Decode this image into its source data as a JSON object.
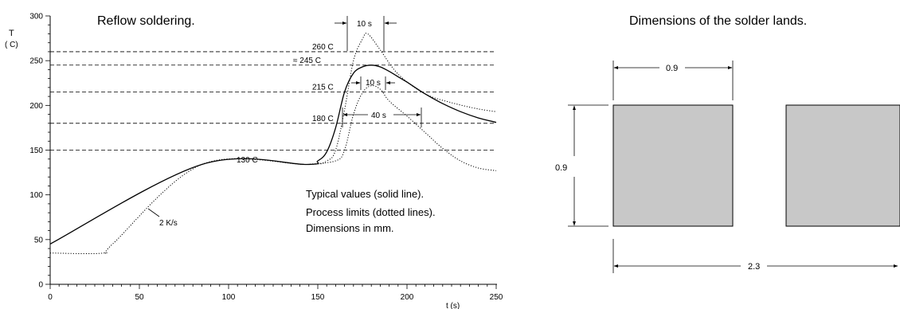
{
  "left_panel": {
    "title": "Reflow soldering.",
    "y_axis_title": "T",
    "y_axis_unit": "( C)",
    "x_axis_title": "t (s)",
    "y_ticks": [
      "0",
      "50",
      "100",
      "150",
      "200",
      "250",
      "300"
    ],
    "x_ticks": [
      "0",
      "50",
      "100",
      "150",
      "200",
      "250"
    ],
    "levels": [
      {
        "value": 260,
        "label": "260  C"
      },
      {
        "value": 245,
        "label": "≈ 245  C"
      },
      {
        "value": 215,
        "label": "215  C"
      },
      {
        "value": 180,
        "label": "180  C"
      },
      {
        "value": 150,
        "label": ""
      }
    ],
    "plateau_label": "130  C",
    "ramp_label": "2 K/s",
    "interval_top": "10 s",
    "interval_mid": "10 s",
    "interval_wide": "40 s",
    "notes": [
      "Typical values (solid line).",
      "Process limits (dotted lines).",
      "Dimensions in mm."
    ]
  },
  "right_panel": {
    "title": "Dimensions of the solder lands.",
    "width_label": "0.9",
    "height_label": "0.9",
    "span_label": "2.3",
    "land_color": "#c8c8c8"
  },
  "chart_data": {
    "type": "line",
    "xlim": [
      0,
      250
    ],
    "ylim": [
      0,
      300
    ],
    "series": [
      {
        "style": "solid",
        "x": [
          0,
          85,
          144,
          150,
          155,
          160,
          165,
          170,
          175,
          180,
          185,
          190,
          195,
          200,
          210,
          220,
          230,
          240,
          250
        ],
        "y": [
          45,
          134,
          134,
          138,
          148,
          175,
          215,
          236,
          243,
          245,
          243,
          238,
          232,
          226,
          213,
          202,
          193,
          186,
          181
        ]
      },
      {
        "style": "dotted",
        "x": [
          0,
          30,
          35,
          85,
          144,
          155,
          160,
          165,
          170,
          175,
          178,
          185,
          195,
          210,
          225,
          240,
          250
        ],
        "y": [
          35,
          35,
          45,
          134,
          134,
          138,
          150,
          195,
          250,
          274,
          280,
          262,
          235,
          213,
          203,
          196,
          193
        ]
      },
      {
        "style": "dotted",
        "x": [
          144,
          160,
          165,
          170,
          175,
          180,
          185,
          190,
          200,
          210,
          220,
          230,
          240,
          250
        ],
        "y": [
          134,
          138,
          150,
          190,
          214,
          222,
          218,
          205,
          188,
          170,
          152,
          138,
          130,
          127
        ]
      }
    ]
  }
}
